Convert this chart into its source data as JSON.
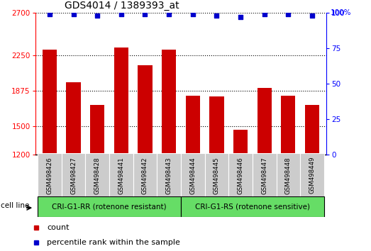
{
  "title": "GDS4014 / 1389393_at",
  "samples": [
    "GSM498426",
    "GSM498427",
    "GSM498428",
    "GSM498441",
    "GSM498442",
    "GSM498443",
    "GSM498444",
    "GSM498445",
    "GSM498446",
    "GSM498447",
    "GSM498448",
    "GSM498449"
  ],
  "counts": [
    2310,
    1960,
    1720,
    2330,
    2140,
    2310,
    1820,
    1810,
    1460,
    1900,
    1820,
    1720
  ],
  "percentile_ranks": [
    99,
    99,
    98,
    99,
    99,
    99,
    99,
    98,
    97,
    99,
    99,
    98
  ],
  "bar_color": "#cc0000",
  "dot_color": "#0000cc",
  "ylim_left": [
    1200,
    2700
  ],
  "ylim_right": [
    0,
    100
  ],
  "yticks_left": [
    1200,
    1500,
    1875,
    2250,
    2700
  ],
  "yticks_right": [
    0,
    25,
    50,
    75,
    100
  ],
  "group1_label": "CRI-G1-RR (rotenone resistant)",
  "group2_label": "CRI-G1-RS (rotenone sensitive)",
  "group1_count": 6,
  "group2_count": 6,
  "group_bg_color": "#66dd66",
  "sample_bg_color": "#cccccc",
  "cell_line_label": "cell line",
  "legend_count_label": "count",
  "legend_pct_label": "percentile rank within the sample",
  "title_fontsize": 10,
  "tick_fontsize": 7.5,
  "label_fontsize": 8,
  "bar_width": 0.6
}
